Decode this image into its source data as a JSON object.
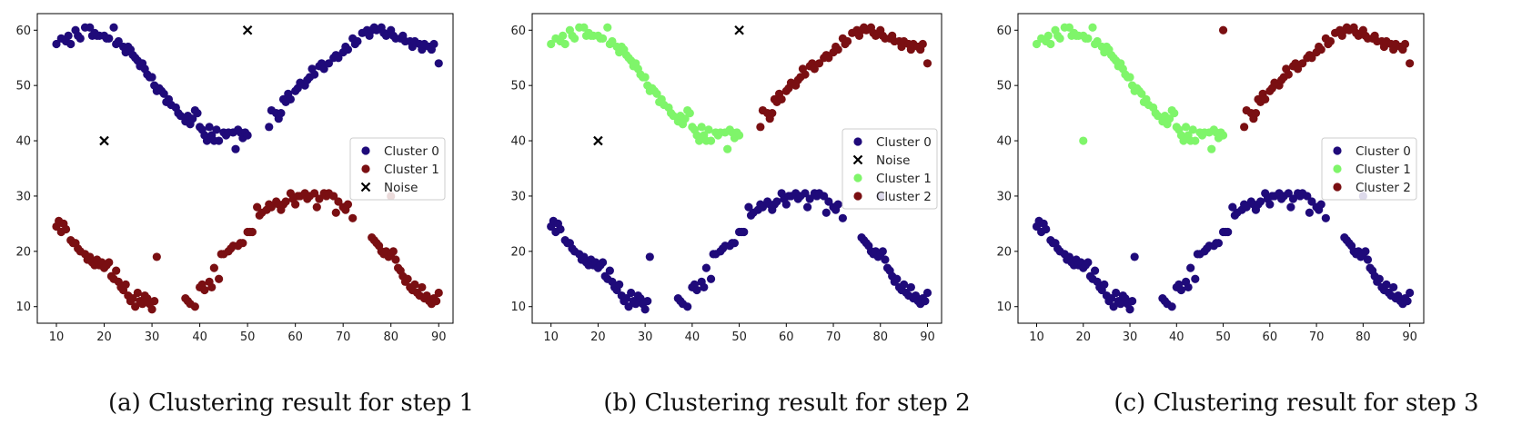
{
  "figure": {
    "panels": [
      {
        "caption": "(a)  Clustering result for step 1",
        "chart_data": {
          "type": "scatter",
          "title": "",
          "xlabel": "",
          "ylabel": "",
          "xlim": [
            6,
            93
          ],
          "ylim": [
            7,
            63
          ],
          "xticks": [
            10,
            20,
            30,
            40,
            50,
            60,
            70,
            80,
            90
          ],
          "yticks": [
            10,
            20,
            30,
            40,
            50,
            60
          ],
          "legend_position": "center-right",
          "series": [
            {
              "name": "Cluster 0",
              "marker": "circle",
              "color": "#1f0a7a",
              "group": "upper"
            },
            {
              "name": "Cluster 1",
              "marker": "circle",
              "color": "#7a0f12",
              "group": "lower"
            },
            {
              "name": "Noise",
              "marker": "x",
              "color": "#000000",
              "points": [
                [
                  20,
                  40
                ],
                [
                  50,
                  60
                ]
              ]
            }
          ]
        }
      },
      {
        "caption": "(b)  Clustering result for step 2",
        "chart_data": {
          "type": "scatter",
          "title": "",
          "xlabel": "",
          "ylabel": "",
          "xlim": [
            6,
            93
          ],
          "ylim": [
            7,
            63
          ],
          "xticks": [
            10,
            20,
            30,
            40,
            50,
            60,
            70,
            80,
            90
          ],
          "yticks": [
            10,
            20,
            30,
            40,
            50,
            60
          ],
          "legend_position": "center-right",
          "series": [
            {
              "name": "Cluster 0",
              "marker": "circle",
              "color": "#1f0a7a",
              "group": "lower"
            },
            {
              "name": "Noise",
              "marker": "x",
              "color": "#000000",
              "points": [
                [
                  20,
                  40
                ],
                [
                  50,
                  60
                ]
              ]
            },
            {
              "name": "Cluster 1",
              "marker": "circle",
              "color": "#7ff56a",
              "group": "upper-left"
            },
            {
              "name": "Cluster 2",
              "marker": "circle",
              "color": "#7a0f12",
              "group": "upper-right"
            }
          ]
        }
      },
      {
        "caption": "(c)  Clustering result for step 3",
        "chart_data": {
          "type": "scatter",
          "title": "",
          "xlabel": "",
          "ylabel": "",
          "xlim": [
            6,
            93
          ],
          "ylim": [
            7,
            63
          ],
          "xticks": [
            10,
            20,
            30,
            40,
            50,
            60,
            70,
            80,
            90
          ],
          "yticks": [
            10,
            20,
            30,
            40,
            50,
            60
          ],
          "legend_position": "center-right",
          "series": [
            {
              "name": "Cluster 0",
              "marker": "circle",
              "color": "#1f0a7a",
              "group": "lower"
            },
            {
              "name": "Cluster 1",
              "marker": "circle",
              "color": "#7ff56a",
              "group": "upper-left",
              "extra": [
                [
                  20,
                  40
                ]
              ]
            },
            {
              "name": "Cluster 2",
              "marker": "circle",
              "color": "#7a0f12",
              "group": "upper-right",
              "extra": [
                [
                  50,
                  60
                ]
              ]
            }
          ]
        }
      }
    ],
    "point_sets": {
      "upper_left": [
        [
          10,
          57.5
        ],
        [
          11,
          58.5
        ],
        [
          12,
          58
        ],
        [
          12.5,
          59
        ],
        [
          13,
          57.5
        ],
        [
          14,
          60
        ],
        [
          14.5,
          59
        ],
        [
          15,
          58.5
        ],
        [
          16,
          60.5
        ],
        [
          17,
          60.5
        ],
        [
          17.5,
          59
        ],
        [
          18,
          59.5
        ],
        [
          18.5,
          59
        ],
        [
          19,
          59
        ],
        [
          20,
          59
        ],
        [
          20.5,
          58.5
        ],
        [
          21,
          58.5
        ],
        [
          22,
          60.5
        ],
        [
          22.5,
          57.5
        ],
        [
          23,
          58
        ],
        [
          24,
          57
        ],
        [
          24.5,
          56
        ],
        [
          25,
          57
        ],
        [
          25.5,
          56.5
        ],
        [
          26,
          55.5
        ],
        [
          26.5,
          55
        ],
        [
          27,
          54.5
        ],
        [
          27.5,
          53.5
        ],
        [
          28,
          54
        ],
        [
          28.5,
          53
        ],
        [
          29,
          52
        ],
        [
          29.5,
          51.5
        ],
        [
          30,
          51.5
        ],
        [
          30.5,
          50
        ],
        [
          31,
          49
        ],
        [
          31.5,
          49.5
        ],
        [
          32,
          49
        ],
        [
          32.5,
          48.5
        ],
        [
          33,
          47
        ],
        [
          33.5,
          47.5
        ],
        [
          34,
          46.5
        ],
        [
          35,
          46
        ],
        [
          35.5,
          45
        ],
        [
          36,
          44.5
        ],
        [
          37,
          43.5
        ],
        [
          37.5,
          44.5
        ],
        [
          38,
          43
        ],
        [
          38.5,
          44
        ],
        [
          39,
          45.5
        ],
        [
          39.5,
          45
        ],
        [
          40,
          42.5
        ],
        [
          40.5,
          42
        ],
        [
          41,
          41
        ],
        [
          41.5,
          40
        ],
        [
          42,
          42.5
        ],
        [
          42.5,
          41
        ],
        [
          43,
          40
        ],
        [
          43.5,
          42
        ],
        [
          44,
          40
        ],
        [
          45,
          41.5
        ],
        [
          45.5,
          41
        ],
        [
          46,
          41.5
        ],
        [
          47,
          41.5
        ],
        [
          47.5,
          38.5
        ],
        [
          48,
          42
        ],
        [
          48.5,
          41.5
        ],
        [
          49,
          40.5
        ],
        [
          49.5,
          41.5
        ],
        [
          50,
          41
        ]
      ],
      "upper_right": [
        [
          54.5,
          42.5
        ],
        [
          55,
          45.5
        ],
        [
          56,
          45
        ],
        [
          56.5,
          44
        ],
        [
          57,
          45
        ],
        [
          57.5,
          47.5
        ],
        [
          58,
          47
        ],
        [
          58.5,
          48.5
        ],
        [
          59,
          47.5
        ],
        [
          60,
          49
        ],
        [
          60.5,
          49.5
        ],
        [
          61,
          50.5
        ],
        [
          62,
          50
        ],
        [
          62.5,
          51
        ],
        [
          63,
          51.5
        ],
        [
          63.5,
          53
        ],
        [
          64,
          52
        ],
        [
          65,
          53.5
        ],
        [
          65.5,
          54
        ],
        [
          66,
          53
        ],
        [
          67,
          54
        ],
        [
          68,
          55
        ],
        [
          68.5,
          55.5
        ],
        [
          69,
          55
        ],
        [
          70,
          56
        ],
        [
          70.5,
          57
        ],
        [
          71,
          56.5
        ],
        [
          72,
          58.5
        ],
        [
          72.5,
          57.5
        ],
        [
          73,
          58
        ],
        [
          74,
          59.5
        ],
        [
          75,
          60
        ],
        [
          75.5,
          59
        ],
        [
          76,
          60
        ],
        [
          76.5,
          60.5
        ],
        [
          77,
          60
        ],
        [
          78,
          60.5
        ],
        [
          78.5,
          59.5
        ],
        [
          79,
          59
        ],
        [
          80,
          60
        ],
        [
          80.5,
          59
        ],
        [
          81,
          58.5
        ],
        [
          82,
          58.5
        ],
        [
          82.5,
          59
        ],
        [
          83,
          58
        ],
        [
          84,
          58
        ],
        [
          84.5,
          57
        ],
        [
          85,
          58
        ],
        [
          86,
          57.5
        ],
        [
          86.5,
          56.5
        ],
        [
          87,
          57.5
        ],
        [
          88,
          57
        ],
        [
          88.5,
          56.5
        ],
        [
          89,
          57.5
        ],
        [
          90,
          54
        ]
      ],
      "lower": [
        [
          10,
          24.5
        ],
        [
          10.5,
          25.5
        ],
        [
          11,
          23.5
        ],
        [
          11.5,
          25
        ],
        [
          12,
          24
        ],
        [
          13,
          22
        ],
        [
          13.5,
          21.5
        ],
        [
          14,
          21.5
        ],
        [
          14.5,
          20.5
        ],
        [
          15,
          20
        ],
        [
          16,
          19.5
        ],
        [
          16.5,
          18.5
        ],
        [
          17,
          19
        ],
        [
          17.5,
          18
        ],
        [
          18,
          17.5
        ],
        [
          18.5,
          18.5
        ],
        [
          19,
          17.5
        ],
        [
          19.5,
          18
        ],
        [
          20,
          17
        ],
        [
          20.5,
          17.5
        ],
        [
          21,
          18
        ],
        [
          21.5,
          15.5
        ],
        [
          22,
          15
        ],
        [
          22.5,
          16.5
        ],
        [
          23,
          14.5
        ],
        [
          23.5,
          13.5
        ],
        [
          24,
          13
        ],
        [
          24.5,
          14
        ],
        [
          25,
          12
        ],
        [
          25.5,
          11
        ],
        [
          26,
          11.5
        ],
        [
          26.5,
          10
        ],
        [
          27,
          12.5
        ],
        [
          27.5,
          11
        ],
        [
          28,
          10.5
        ],
        [
          28.5,
          12
        ],
        [
          29,
          11.5
        ],
        [
          29.5,
          10.5
        ],
        [
          30,
          9.5
        ],
        [
          30.5,
          11
        ],
        [
          31,
          19
        ],
        [
          37,
          11.5
        ],
        [
          37.5,
          11
        ],
        [
          38,
          10.5
        ],
        [
          39,
          10
        ],
        [
          40,
          13.5
        ],
        [
          40.5,
          14
        ],
        [
          41,
          13
        ],
        [
          42,
          14.5
        ],
        [
          42.5,
          13.5
        ],
        [
          43,
          17
        ],
        [
          44,
          15
        ],
        [
          44.5,
          19.5
        ],
        [
          45,
          19.5
        ],
        [
          46,
          20
        ],
        [
          46.5,
          20.5
        ],
        [
          47,
          21
        ],
        [
          48,
          21
        ],
        [
          48.5,
          21.5
        ],
        [
          49,
          21.5
        ],
        [
          50,
          23.5
        ],
        [
          50.5,
          23.5
        ],
        [
          51,
          23.5
        ],
        [
          52,
          28
        ],
        [
          52.5,
          26.5
        ],
        [
          53,
          27
        ],
        [
          54,
          27.5
        ],
        [
          54.5,
          28.5
        ],
        [
          55,
          28
        ],
        [
          56,
          29
        ],
        [
          56.5,
          28.5
        ],
        [
          57,
          27.5
        ],
        [
          57.5,
          28.5
        ],
        [
          58,
          29
        ],
        [
          59,
          30.5
        ],
        [
          59.5,
          29.5
        ],
        [
          60,
          28.5
        ],
        [
          60.5,
          30
        ],
        [
          61,
          30
        ],
        [
          62,
          30.5
        ],
        [
          62.5,
          29.5
        ],
        [
          63,
          30
        ],
        [
          64,
          30.5
        ],
        [
          64.5,
          28
        ],
        [
          65,
          29.5
        ],
        [
          66,
          30.5
        ],
        [
          66.5,
          30
        ],
        [
          67,
          30.5
        ],
        [
          68,
          30
        ],
        [
          68.5,
          27
        ],
        [
          69,
          29
        ],
        [
          70,
          28
        ],
        [
          70.5,
          27.5
        ],
        [
          71,
          28.5
        ],
        [
          72,
          26
        ],
        [
          76,
          22.5
        ],
        [
          76.5,
          22
        ],
        [
          77,
          21.5
        ],
        [
          77.5,
          21
        ],
        [
          78,
          20
        ],
        [
          78.5,
          19.5
        ],
        [
          79,
          20
        ],
        [
          79.5,
          19
        ],
        [
          80,
          19.5
        ],
        [
          80.5,
          20
        ],
        [
          81,
          18.5
        ],
        [
          81.5,
          17
        ],
        [
          82,
          16.5
        ],
        [
          82.5,
          15.5
        ],
        [
          83,
          14.5
        ],
        [
          83.5,
          15
        ],
        [
          84,
          13.5
        ],
        [
          84.5,
          13
        ],
        [
          85,
          14
        ],
        [
          85.5,
          12.5
        ],
        [
          86,
          12
        ],
        [
          86.5,
          13.5
        ],
        [
          87,
          11.5
        ],
        [
          87.5,
          12
        ],
        [
          88,
          11
        ],
        [
          88.5,
          10.5
        ],
        [
          89,
          11.5
        ],
        [
          89.5,
          11
        ],
        [
          90,
          12.5
        ],
        [
          80,
          30
        ]
      ]
    }
  }
}
